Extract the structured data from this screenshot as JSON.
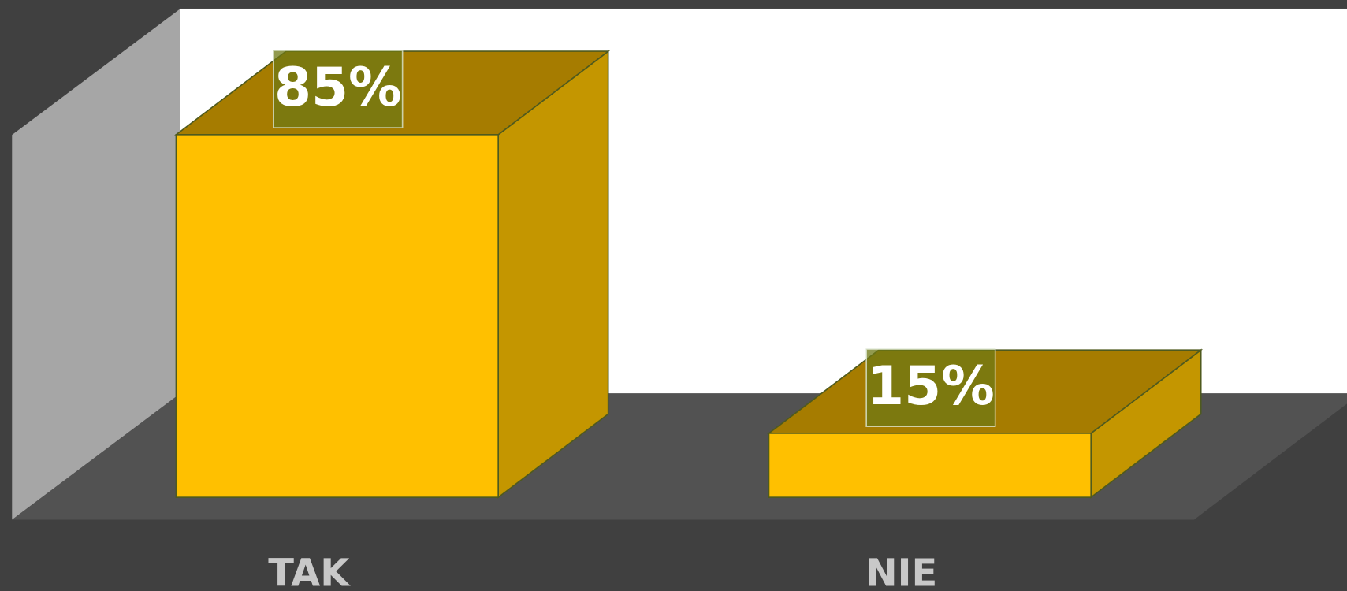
{
  "chart_data": {
    "type": "bar3d",
    "categories": [
      "TAK",
      "NIE"
    ],
    "values": [
      85,
      15
    ],
    "value_labels": [
      "85%",
      "15%"
    ],
    "color": "#ffc000",
    "ylim": [
      0,
      95
    ]
  }
}
